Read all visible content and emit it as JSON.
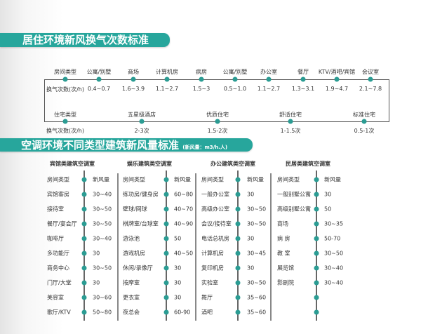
{
  "accent_color": "#27a69c",
  "section1": {
    "title": "居住环境新风换气次数标准",
    "row1": {
      "header_label": "房间类型",
      "header_value": "换气次数(次/h)",
      "items": [
        {
          "label": "公寓/别墅",
          "value": "0.4~0.7"
        },
        {
          "label": "商场",
          "value": "1.6~3.9"
        },
        {
          "label": "计算机房",
          "value": "1.1~2.7"
        },
        {
          "label": "病房",
          "value": "1.5~3"
        },
        {
          "label": "公寓/别墅",
          "value": "0.5~1.0"
        },
        {
          "label": "办公室",
          "value": "1.1~2.7"
        },
        {
          "label": "餐厅",
          "value": "1.3~3.1"
        },
        {
          "label": "KTV/酒吧/宾馆",
          "value": "1.9~4.7"
        },
        {
          "label": "会议室",
          "value": "2.1~7.8"
        }
      ]
    },
    "row2": {
      "header_label": "住宅类型",
      "header_value": "换气次数(次/h)",
      "items": [
        {
          "label": "五星级酒店",
          "value": "2-3次"
        },
        {
          "label": "优质住宅",
          "value": "1.5-2次"
        },
        {
          "label": "舒适住宅",
          "value": "1-1.5次"
        },
        {
          "label": "标准住宅",
          "value": "0.5-1次"
        }
      ]
    }
  },
  "section2": {
    "title": "空调环境不同类型建筑新风量标准",
    "unit": "(新风量：m3/h.人)",
    "columns": [
      {
        "title": "宾馆类建筑空调室",
        "rows": [
          [
            "房间类型",
            "新风量"
          ],
          [
            "宾馆客房",
            "30~40"
          ],
          [
            "接待室",
            "30~50"
          ],
          [
            "餐厅/宴会厅",
            "30~50"
          ],
          [
            "咖啡厅",
            "30~40"
          ],
          [
            "多功能厅",
            "30"
          ],
          [
            "商务中心",
            "30~50"
          ],
          [
            "门厅/大堂",
            "30"
          ],
          [
            "美容室",
            "30~60"
          ],
          [
            "歌厅/KTV",
            "50~80"
          ]
        ]
      },
      {
        "title": "娱乐建筑类空调室",
        "rows": [
          [
            "房间类型",
            "新风量"
          ],
          [
            "练功房/健身房",
            "60~80"
          ],
          [
            "壁球/网球",
            "40~70"
          ],
          [
            "棋牌室/台球室",
            "40~90"
          ],
          [
            "游泳池",
            "50"
          ],
          [
            "游戏机房",
            "40~50"
          ],
          [
            "休闲/录像厅",
            "30"
          ],
          [
            "按摩室",
            "30"
          ],
          [
            "更衣室",
            "30"
          ],
          [
            "夜总会",
            "60-90"
          ]
        ]
      },
      {
        "title": "办公建筑类空调室",
        "rows": [
          [
            "房间类型",
            "新风量"
          ],
          [
            "一般办公室",
            "30"
          ],
          [
            "高级办公室",
            "30~50"
          ],
          [
            "会议/接待室",
            "30~50"
          ],
          [
            "电话总机房",
            "30"
          ],
          [
            "计算机房",
            "30~45"
          ],
          [
            "复印机房",
            "30"
          ],
          [
            "实验室",
            "30~50"
          ],
          [
            "舞厅",
            "35~60"
          ],
          [
            "酒吧",
            "35~60"
          ]
        ]
      },
      {
        "title": "民居类建筑空调室",
        "rows": [
          [
            "房间类型",
            "新风量"
          ],
          [
            "一般别墅公寓",
            "30"
          ],
          [
            "高级别墅公寓",
            "50"
          ],
          [
            "商场",
            "30~35"
          ],
          [
            "病 房",
            "50-70"
          ],
          [
            "教 室",
            "30~50"
          ],
          [
            "展览馆",
            "30~40"
          ],
          [
            "影剧院",
            "30~40"
          ],
          [
            "",
            ""
          ],
          [
            "",
            ""
          ]
        ]
      }
    ]
  }
}
